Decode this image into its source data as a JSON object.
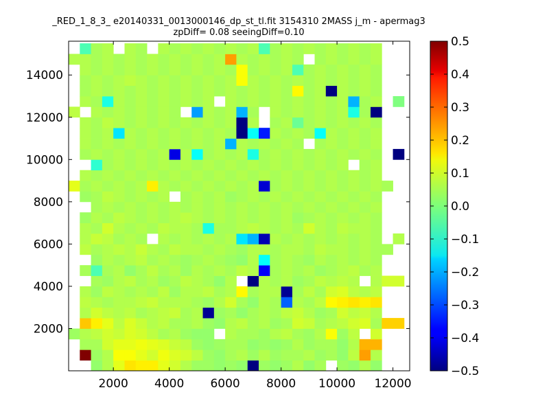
{
  "title_lines": [
    "_RED_1_8_3_ e20140331_0013000146_dp_st_tl.fit 3154310 2MASS j_m - apermag3",
    "zpDiff= 0.08 seeingDiff=0.10"
  ],
  "chart_data": {
    "type": "heatmap",
    "xlim": [
      400,
      12600
    ],
    "ylim": [
      0,
      15600
    ],
    "x_ticks": [
      2000,
      4000,
      6000,
      8000,
      10000,
      12000
    ],
    "y_ticks": [
      2000,
      4000,
      6000,
      8000,
      10000,
      12000,
      14000
    ],
    "colorbar": {
      "colormap": "jet",
      "min": -0.5,
      "max": 0.5,
      "ticks": [
        "0.5",
        "0.4",
        "0.3",
        "0.2",
        "0.1",
        "0.0",
        "−0.1",
        "−0.2",
        "−0.3",
        "−0.4",
        "−0.5"
      ]
    },
    "x_bins": {
      "start": 400,
      "step": 400,
      "count": 30
    },
    "y_bins": {
      "start": 0,
      "step": 500,
      "count": 31
    },
    "missing_value": null,
    "cell_values_note_rows_bottom_to_top": true,
    "values": [
      [
        null,
        null,
        0.02,
        0.05,
        0.1,
        0.15,
        0.14,
        0.14,
        0.1,
        0.08,
        0.05,
        0.03,
        0.03,
        0.02,
        0.03,
        0.02,
        -0.5,
        0.03,
        0.02,
        0.03,
        0.05,
        0.02,
        0.04,
        null,
        0.03,
        0.02,
        0.05,
        0.02,
        null,
        null
      ],
      [
        null,
        0.5,
        0.03,
        0.05,
        0.12,
        0.12,
        0.1,
        0.08,
        0.11,
        0.09,
        0.08,
        0.06,
        0.03,
        0.02,
        0.04,
        0.05,
        0.03,
        0.05,
        0.03,
        0.04,
        0.04,
        0.05,
        0.03,
        0.04,
        0.02,
        0.06,
        0.22,
        0.05,
        null,
        null
      ],
      [
        null,
        0.04,
        0.04,
        0.08,
        0.1,
        0.1,
        0.11,
        0.1,
        0.09,
        0.07,
        0.06,
        0.03,
        0.02,
        0.03,
        0.04,
        0.04,
        0.02,
        0.03,
        0.02,
        0.03,
        0.05,
        0.03,
        0.04,
        0.04,
        0.02,
        0.05,
        0.2,
        0.2,
        null,
        null
      ],
      [
        0.03,
        0.05,
        0.06,
        0.08,
        0.07,
        0.09,
        0.08,
        0.06,
        0.04,
        0.05,
        0.03,
        0.02,
        0.02,
        null,
        0.05,
        0.04,
        0.04,
        0.03,
        0.05,
        0.06,
        0.04,
        0.03,
        0.05,
        0.12,
        0.03,
        0.06,
        null,
        0.08,
        null,
        null
      ],
      [
        null,
        0.18,
        0.14,
        0.1,
        0.06,
        0.09,
        0.07,
        0.05,
        0.06,
        0.04,
        0.04,
        0.05,
        0.03,
        0.02,
        0.05,
        0.06,
        0.04,
        0.05,
        0.03,
        0.04,
        0.08,
        0.07,
        0.04,
        0.05,
        0.06,
        0.08,
        0.09,
        0.04,
        0.17,
        0.17
      ],
      [
        null,
        0.05,
        0.08,
        0.06,
        0.05,
        0.06,
        0.04,
        0.05,
        0.06,
        0.07,
        0.04,
        0.05,
        -0.48,
        0.03,
        0.04,
        0.02,
        0.04,
        0.05,
        0.04,
        0.06,
        0.07,
        0.05,
        0.03,
        0.04,
        0.08,
        0.06,
        0.07,
        0.05,
        null,
        null
      ],
      [
        null,
        0.06,
        0.05,
        0.04,
        0.05,
        0.05,
        0.06,
        0.07,
        0.05,
        0.05,
        0.05,
        0.04,
        0.03,
        0.05,
        0.08,
        0.04,
        0.02,
        0.05,
        0.04,
        -0.28,
        0.05,
        0.04,
        0.06,
        0.13,
        0.14,
        0.15,
        0.14,
        0.15,
        null,
        null
      ],
      [
        null,
        0.05,
        0.03,
        0.06,
        0.05,
        0.04,
        0.05,
        0.04,
        0.06,
        0.03,
        0.05,
        0.05,
        0.06,
        0.04,
        0.05,
        0.13,
        0.04,
        0.05,
        0.05,
        -0.48,
        0.04,
        0.06,
        0.04,
        0.08,
        0.09,
        0.06,
        0.05,
        0.06,
        null,
        null
      ],
      [
        null,
        null,
        0.04,
        0.03,
        0.05,
        0.06,
        0.04,
        0.05,
        0.03,
        0.04,
        0.06,
        0.05,
        0.04,
        0.02,
        0.05,
        null,
        -0.5,
        0.05,
        0.04,
        0.05,
        0.03,
        0.04,
        0.06,
        0.05,
        0.06,
        0.05,
        null,
        0.05,
        0.08,
        0.08
      ],
      [
        null,
        0.04,
        -0.05,
        0.04,
        0.05,
        0.02,
        0.04,
        0.06,
        0.04,
        0.05,
        0.03,
        0.05,
        0.04,
        0.05,
        0.04,
        0.06,
        0.05,
        -0.38,
        0.04,
        0.05,
        0.04,
        0.05,
        0.03,
        0.04,
        0.05,
        0.06,
        0.04,
        0.05,
        null,
        null
      ],
      [
        null,
        null,
        0.03,
        0.05,
        0.04,
        0.05,
        0.06,
        0.04,
        0.05,
        0.04,
        0.03,
        0.04,
        0.05,
        0.04,
        0.03,
        0.02,
        0.05,
        -0.12,
        0.04,
        0.05,
        0.04,
        0.03,
        0.05,
        0.04,
        0.05,
        0.04,
        0.05,
        0.04,
        null,
        null
      ],
      [
        null,
        0.06,
        0.04,
        0.05,
        0.06,
        0.05,
        0.07,
        0.05,
        0.04,
        0.06,
        0.05,
        0.05,
        0.04,
        0.05,
        0.04,
        0.03,
        0.05,
        0.05,
        0.04,
        0.05,
        0.05,
        0.04,
        0.06,
        0.05,
        0.05,
        0.04,
        0.05,
        0.04,
        0.04,
        null
      ],
      [
        null,
        0.05,
        0.07,
        0.06,
        0.04,
        0.05,
        0.04,
        null,
        0.05,
        0.04,
        0.05,
        0.04,
        0.05,
        0.04,
        0.05,
        -0.15,
        -0.2,
        -0.45,
        0.05,
        0.04,
        0.05,
        0.04,
        0.05,
        0.04,
        0.05,
        0.04,
        0.05,
        0.04,
        null,
        0.05
      ],
      [
        null,
        0.05,
        0.04,
        0.08,
        0.05,
        0.04,
        0.05,
        0.04,
        0.06,
        0.05,
        0.05,
        0.04,
        -0.1,
        0.04,
        0.04,
        0.05,
        0.06,
        0.05,
        0.04,
        0.05,
        0.04,
        0.08,
        0.05,
        0.04,
        0.06,
        0.05,
        0.05,
        0.04,
        null,
        null
      ],
      [
        null,
        0.03,
        0.05,
        0.04,
        0.06,
        0.05,
        0.04,
        0.05,
        0.04,
        0.05,
        0.06,
        0.05,
        0.04,
        0.05,
        0.04,
        0.05,
        0.04,
        0.05,
        0.04,
        0.05,
        0.03,
        0.04,
        0.05,
        0.04,
        0.05,
        0.04,
        0.05,
        0.04,
        null,
        null
      ],
      [
        null,
        null,
        0.04,
        0.05,
        0.04,
        0.05,
        0.04,
        0.05,
        0.04,
        0.05,
        0.04,
        0.05,
        0.04,
        0.05,
        0.04,
        0.05,
        0.04,
        0.05,
        0.04,
        0.05,
        0.04,
        0.05,
        0.04,
        0.05,
        0.04,
        0.05,
        0.04,
        0.05,
        null,
        null
      ],
      [
        null,
        0.03,
        0.04,
        0.06,
        0.05,
        0.04,
        0.05,
        0.04,
        0.05,
        null,
        0.04,
        0.05,
        0.04,
        0.05,
        0.03,
        0.04,
        0.05,
        0.04,
        0.05,
        0.04,
        0.05,
        0.04,
        0.05,
        0.04,
        0.05,
        0.04,
        0.05,
        0.04,
        null,
        null
      ],
      [
        0.1,
        0.04,
        0.05,
        0.04,
        0.05,
        0.04,
        0.05,
        0.14,
        0.05,
        0.04,
        0.05,
        0.04,
        0.05,
        0.04,
        0.05,
        0.04,
        0.05,
        -0.42,
        0.04,
        0.05,
        0.04,
        0.05,
        0.04,
        0.05,
        0.04,
        0.05,
        0.04,
        0.05,
        0.04,
        null
      ],
      [
        null,
        0.05,
        0.04,
        0.05,
        0.04,
        0.05,
        0.04,
        0.05,
        0.04,
        0.05,
        0.04,
        0.05,
        0.04,
        0.05,
        0.04,
        0.05,
        0.04,
        0.05,
        0.04,
        0.05,
        0.04,
        0.05,
        0.04,
        0.05,
        0.04,
        0.05,
        0.04,
        0.05,
        null,
        null
      ],
      [
        null,
        null,
        -0.08,
        0.04,
        0.05,
        0.04,
        0.05,
        0.04,
        0.05,
        0.04,
        0.05,
        0.04,
        0.05,
        0.04,
        0.05,
        0.04,
        0.05,
        0.04,
        0.05,
        0.04,
        0.05,
        0.04,
        0.05,
        0.04,
        0.05,
        null,
        0.04,
        0.05,
        null,
        null
      ],
      [
        null,
        0.04,
        0.05,
        0.04,
        0.05,
        0.04,
        0.05,
        0.04,
        0.05,
        -0.4,
        0.05,
        -0.12,
        0.04,
        0.05,
        0.04,
        0.05,
        -0.1,
        0.04,
        0.05,
        0.04,
        0.05,
        0.04,
        0.05,
        0.04,
        0.05,
        0.04,
        0.05,
        0.04,
        null,
        -0.5
      ],
      [
        null,
        0.05,
        0.04,
        0.05,
        0.04,
        0.05,
        0.04,
        0.05,
        0.04,
        0.05,
        0.04,
        0.05,
        0.04,
        0.05,
        -0.2,
        0.05,
        0.04,
        0.05,
        0.04,
        0.05,
        0.04,
        null,
        0.04,
        0.05,
        0.04,
        0.05,
        0.04,
        0.05,
        null,
        null
      ],
      [
        null,
        0.05,
        0.04,
        0.05,
        -0.15,
        0.05,
        0.04,
        0.05,
        0.04,
        0.05,
        0.04,
        0.05,
        0.04,
        0.05,
        0.04,
        -0.5,
        -0.12,
        -0.35,
        0.05,
        0.04,
        0.05,
        0.04,
        -0.12,
        0.05,
        0.04,
        0.05,
        0.04,
        0.05,
        null,
        null
      ],
      [
        null,
        0.05,
        0.04,
        0.06,
        0.05,
        0.04,
        0.05,
        0.04,
        0.05,
        0.04,
        0.05,
        0.04,
        0.05,
        0.04,
        0.05,
        -0.5,
        0.05,
        null,
        0.04,
        0.05,
        -0.02,
        0.04,
        0.05,
        0.04,
        0.05,
        0.04,
        0.05,
        0.04,
        null,
        null
      ],
      [
        0.06,
        null,
        0.05,
        0.04,
        0.05,
        0.04,
        0.05,
        0.04,
        0.05,
        0.04,
        null,
        -0.22,
        0.05,
        0.04,
        0.05,
        -0.2,
        0.04,
        null,
        0.05,
        0.04,
        0.05,
        0.04,
        0.05,
        0.04,
        0.05,
        -0.1,
        0.04,
        -0.5,
        null,
        null
      ],
      [
        null,
        0.05,
        0.04,
        -0.1,
        0.05,
        0.04,
        0.05,
        0.04,
        0.05,
        0.04,
        0.05,
        0.04,
        0.05,
        null,
        0.05,
        0.04,
        0.05,
        0.04,
        0.05,
        0.04,
        0.05,
        0.04,
        0.05,
        0.04,
        0.05,
        -0.2,
        0.04,
        0.05,
        null,
        0.0
      ],
      [
        null,
        0.04,
        0.05,
        0.04,
        0.05,
        0.04,
        0.05,
        0.04,
        0.05,
        0.04,
        0.05,
        0.04,
        0.05,
        0.04,
        0.05,
        0.04,
        0.05,
        0.04,
        0.05,
        0.04,
        0.13,
        0.04,
        0.05,
        -0.5,
        0.05,
        0.04,
        0.05,
        0.04,
        null,
        null
      ],
      [
        null,
        0.04,
        0.05,
        0.04,
        0.05,
        0.06,
        0.05,
        0.04,
        0.05,
        0.04,
        0.05,
        0.04,
        0.05,
        0.04,
        0.05,
        0.12,
        0.05,
        0.04,
        0.05,
        0.04,
        0.05,
        0.04,
        0.05,
        0.04,
        0.05,
        0.04,
        0.05,
        0.04,
        null,
        null
      ],
      [
        null,
        0.05,
        0.04,
        0.05,
        0.04,
        0.05,
        0.04,
        0.05,
        0.04,
        0.05,
        0.04,
        0.05,
        0.04,
        0.05,
        0.04,
        0.12,
        0.04,
        0.05,
        0.04,
        0.05,
        -0.05,
        0.04,
        0.05,
        0.04,
        0.05,
        0.04,
        0.05,
        0.04,
        null,
        null
      ],
      [
        0.05,
        0.05,
        0.04,
        0.05,
        0.04,
        0.05,
        0.04,
        0.05,
        0.04,
        0.05,
        0.04,
        0.05,
        0.04,
        0.05,
        0.22,
        0.05,
        0.04,
        0.05,
        0.04,
        0.05,
        0.04,
        null,
        0.04,
        0.05,
        0.04,
        0.05,
        0.04,
        0.05,
        null,
        null
      ],
      [
        null,
        -0.05,
        0.04,
        0.05,
        null,
        0.05,
        0.04,
        null,
        0.05,
        0.04,
        0.05,
        0.04,
        0.05,
        0.04,
        0.05,
        0.04,
        0.05,
        -0.05,
        0.04,
        0.05,
        0.04,
        0.05,
        0.04,
        0.05,
        0.04,
        0.05,
        0.04,
        0.05,
        null,
        null
      ]
    ]
  }
}
